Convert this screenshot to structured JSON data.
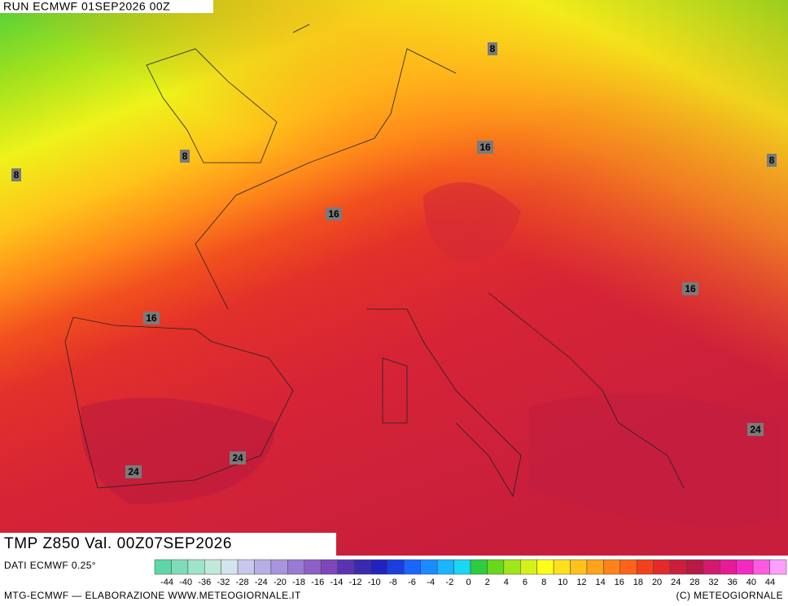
{
  "header": {
    "run": "RUN ECMWF 01SEP2026 00Z"
  },
  "map": {
    "title": "TMP Z850 Val. 00Z07SEP2026",
    "contour_labels": [
      8,
      8,
      8,
      8,
      16,
      16,
      16,
      16,
      24,
      24,
      24
    ]
  },
  "footer": {
    "source": "DATI ECMWF 0.25°",
    "credit": "MTG-ECMWF — ELABORAZIONE WWW.METEOGIORNALE.IT",
    "copyright": "(C) METEOGIORNALE"
  },
  "colorbar": {
    "ticks": [
      -44,
      -40,
      -36,
      -32,
      -28,
      -24,
      -20,
      -18,
      -16,
      -14,
      -12,
      -10,
      -8,
      -6,
      -4,
      -2,
      0,
      2,
      4,
      6,
      8,
      10,
      12,
      14,
      16,
      18,
      20,
      24,
      28,
      32,
      36,
      40,
      44
    ],
    "colors": [
      "#5fd6a8",
      "#7fdcb8",
      "#9fe3c8",
      "#bfe9d8",
      "#d4e4ee",
      "#c8c8ee",
      "#b8aee6",
      "#a894dc",
      "#9a7ad2",
      "#8c60c6",
      "#7e46ba",
      "#5a34b0",
      "#3a2ab0",
      "#2222c0",
      "#1a3ee0",
      "#1a66ff",
      "#1a8cff",
      "#1ab4ff",
      "#1ad6f2",
      "#2ecc40",
      "#66d91a",
      "#a0e61a",
      "#d4f21a",
      "#ffff1a",
      "#ffe01a",
      "#ffc21a",
      "#ffa31a",
      "#ff821a",
      "#ff621a",
      "#f5401c",
      "#e42a28",
      "#cc1e3a",
      "#b81a46",
      "#d21a6e",
      "#e81a98",
      "#f528c0",
      "#ff5ae0",
      "#ffa0ff"
    ]
  }
}
